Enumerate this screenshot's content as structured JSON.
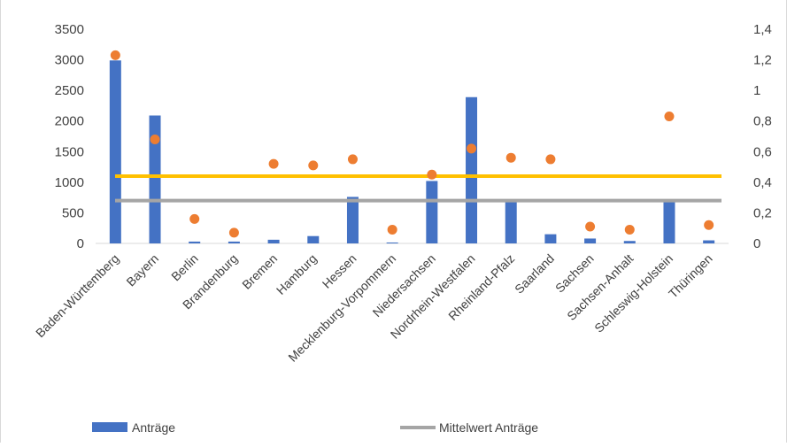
{
  "chart_data": {
    "type": "bar",
    "title": "",
    "categories": [
      "Baden-Württemberg",
      "Bayern",
      "Berlin",
      "Brandenburg",
      "Bremen",
      "Hamburg",
      "Hessen",
      "Mecklenburg-Vorpommern",
      "Niedersachsen",
      "Nordrhein-Westfalen",
      "Rheinland-Pfalz",
      "Saarland",
      "Sachsen",
      "Sachsen-Anhalt",
      "Schleswig-Holstein",
      "Thüringen"
    ],
    "series": [
      {
        "name": "Anträge",
        "type": "bar",
        "axis": "left",
        "color": "#4472c4",
        "values": [
          2990,
          2090,
          30,
          30,
          60,
          120,
          760,
          15,
          1020,
          2390,
          690,
          150,
          80,
          40,
          680,
          50
        ]
      },
      {
        "name": "Mittelwert Anträge",
        "type": "line",
        "axis": "left",
        "color": "#a5a5a5",
        "values": [
          700,
          700,
          700,
          700,
          700,
          700,
          700,
          700,
          700,
          700,
          700,
          700,
          700,
          700,
          700,
          700
        ]
      },
      {
        "type": "scatter",
        "axis": "right",
        "color": "#ed7d31",
        "values": [
          1.23,
          0.68,
          0.16,
          0.07,
          0.52,
          0.51,
          0.55,
          0.09,
          0.45,
          0.62,
          0.56,
          0.55,
          0.11,
          0.09,
          0.83,
          0.12
        ]
      },
      {
        "type": "line",
        "axis": "right",
        "color": "#ffc000",
        "values": [
          0.44,
          0.44,
          0.44,
          0.44,
          0.44,
          0.44,
          0.44,
          0.44,
          0.44,
          0.44,
          0.44,
          0.44,
          0.44,
          0.44,
          0.44,
          0.44
        ]
      }
    ],
    "y_left": {
      "min": 0,
      "max": 3500,
      "ticks": [
        "0",
        "500",
        "1000",
        "1500",
        "2000",
        "2500",
        "3000",
        "3500"
      ]
    },
    "y_right": {
      "min": 0,
      "max": 1.4,
      "ticks": [
        "0",
        "0,2",
        "0,4",
        "0,6",
        "0,8",
        "1",
        "1,2",
        "1,4"
      ]
    },
    "grid": false,
    "legend": {
      "position": "bottom",
      "entries": [
        {
          "label": "Anträge",
          "color": "#4472c4",
          "kind": "bar"
        },
        {
          "label": "Mittelwert Anträge",
          "color": "#a5a5a5",
          "kind": "line"
        }
      ]
    }
  }
}
